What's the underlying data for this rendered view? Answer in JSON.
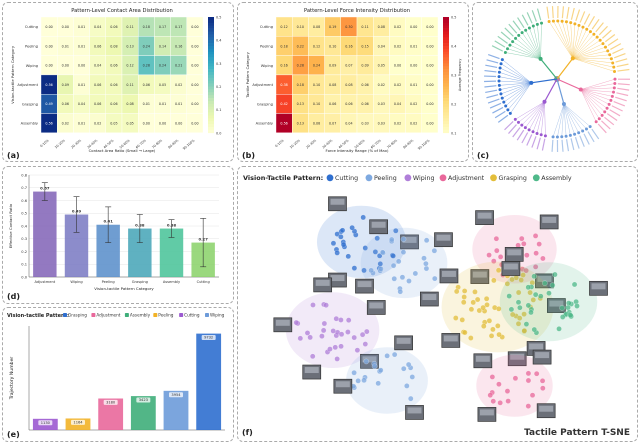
{
  "chart_data": [
    {
      "type": "heatmap",
      "id": "a",
      "panel_label": "(a)",
      "title": "Pattern-Level Contact Area Distribution",
      "xlabel": "Contact Area Ratio (Small → Large)",
      "ylabel": "Vision-tactile Pattern Category",
      "rows": [
        "Cutting",
        "Peeling",
        "Wiping",
        "Adjustment",
        "Grasping",
        "Assembly"
      ],
      "cols": [
        "0-10%",
        "10-20%",
        "20-30%",
        "30-40%",
        "40-50%",
        "50-60%",
        "60-70%",
        "70-80%",
        "80-90%",
        "90-100%"
      ],
      "values": [
        [
          0.0,
          0.0,
          0.01,
          0.04,
          0.06,
          0.11,
          0.18,
          0.17,
          0.17,
          0.0
        ],
        [
          0.0,
          0.01,
          0.01,
          0.06,
          0.08,
          0.13,
          0.24,
          0.14,
          0.16,
          0.0
        ],
        [
          0.0,
          0.0,
          0.0,
          0.04,
          0.06,
          0.12,
          0.28,
          0.24,
          0.21,
          0.0
        ],
        [
          0.56,
          0.09,
          0.01,
          0.06,
          0.06,
          0.11,
          0.06,
          0.05,
          0.02,
          0.0
        ],
        [
          0.49,
          0.06,
          0.04,
          0.06,
          0.06,
          0.08,
          0.01,
          0.01,
          0.01,
          0.0
        ],
        [
          0.56,
          0.02,
          0.01,
          0.02,
          0.05,
          0.05,
          0.0,
          0.0,
          0.0,
          0.0
        ]
      ],
      "colorbar_ticks": [
        "0.5",
        "0.4",
        "0.3",
        "0.2",
        "0.1",
        "0.0"
      ]
    },
    {
      "type": "heatmap",
      "id": "b",
      "panel_label": "(b)",
      "title": "Pattern-Level Force Intensity Distribution",
      "xlabel": "Force Intensity Range (% of Max)",
      "ylabel": "Tactile Pattern Category",
      "colorbar_label": "Average Frequency",
      "rows": [
        "Cutting",
        "Peeling",
        "Wiping",
        "Adjustment",
        "Grasping",
        "Assembly"
      ],
      "cols": [
        "0-10%",
        "10-20%",
        "20-30%",
        "30-40%",
        "40-50%",
        "50-60%",
        "60-70%",
        "70-80%",
        "80-90%",
        "90-100%"
      ],
      "values": [
        [
          0.12,
          0.1,
          0.08,
          0.19,
          0.3,
          0.11,
          0.08,
          0.02,
          0.0,
          0.0
        ],
        [
          0.18,
          0.22,
          0.12,
          0.1,
          0.16,
          0.15,
          0.04,
          0.02,
          0.01,
          0.0
        ],
        [
          0.16,
          0.28,
          0.24,
          0.09,
          0.07,
          0.09,
          0.05,
          0.0,
          0.0,
          0.0
        ],
        [
          0.38,
          0.18,
          0.1,
          0.08,
          0.08,
          0.06,
          0.02,
          0.02,
          0.01,
          0.0
        ],
        [
          0.42,
          0.13,
          0.1,
          0.06,
          0.06,
          0.06,
          0.03,
          0.04,
          0.02,
          0.0
        ],
        [
          0.56,
          0.13,
          0.08,
          0.07,
          0.04,
          0.03,
          0.03,
          0.02,
          0.02,
          0.0
        ]
      ],
      "colorbar_ticks": [
        "0.5",
        "0.4",
        "0.3",
        "0.2",
        "0.1"
      ]
    },
    {
      "type": "radial_tree",
      "id": "c",
      "panel_label": "(c)",
      "branches": [
        {
          "name": "Grasping",
          "color": "#f2b227",
          "leaves": 22
        },
        {
          "name": "Adjustment",
          "color": "#e9689b",
          "leaves": 12
        },
        {
          "name": "Peeling",
          "color": "#6d9bd9",
          "leaves": 10
        },
        {
          "name": "Cutting",
          "color": "#9b59d0",
          "leaves": 9
        },
        {
          "name": "Wiping",
          "color": "#2f6fcf",
          "leaves": 14
        },
        {
          "name": "Assembly",
          "color": "#3fae7a",
          "leaves": 12
        }
      ]
    },
    {
      "type": "bar",
      "id": "d",
      "panel_label": "(d)",
      "xlabel": "Vision-tactile Pattern Category",
      "ylabel": "Effective Contact Ratio",
      "categories": [
        "Adjustment",
        "Wiping",
        "Peeling",
        "Grasping",
        "Assembly",
        "Cutting"
      ],
      "values": [
        0.67,
        0.49,
        0.41,
        0.38,
        0.38,
        0.27
      ],
      "errors": [
        0.07,
        0.14,
        0.14,
        0.11,
        0.07,
        0.19
      ],
      "value_labels": [
        "0.67",
        "0.49",
        "0.41",
        "0.38",
        "0.38",
        "0.27"
      ],
      "colors": [
        "#8467b8",
        "#7c7cc4",
        "#5b8fcb",
        "#49a6b8",
        "#4bc49a",
        "#8cd36c"
      ],
      "ylim": [
        0,
        0.8
      ],
      "yticks": [
        0.0,
        0.1,
        0.2,
        0.3,
        0.4,
        0.5,
        0.6,
        0.7,
        0.8
      ]
    },
    {
      "type": "bar",
      "id": "e",
      "panel_label": "(e)",
      "legend_title": "Vision-tactile Pattern:",
      "ylabel": "Trajectory Number",
      "categories": [
        "Cutting",
        "Peeling",
        "Adjustment",
        "Assembly",
        "Wiping",
        "Grasping"
      ],
      "values": [
        1130,
        1164,
        3180,
        3423,
        3954,
        9732
      ],
      "value_labels": [
        "1130",
        "1164",
        "3180",
        "3423",
        "3954",
        "9732"
      ],
      "colors": [
        "#9b59d0",
        "#f2b227",
        "#e9689b",
        "#3fae7a",
        "#6d9bd9",
        "#2f6fcf"
      ],
      "legend": [
        {
          "name": "Grasping",
          "color": "#2f6fcf"
        },
        {
          "name": "Adjustment",
          "color": "#e9689b"
        },
        {
          "name": "Assembly",
          "color": "#3fae7a"
        },
        {
          "name": "Peeling",
          "color": "#f2b227"
        },
        {
          "name": "Cutting",
          "color": "#9b59d0"
        },
        {
          "name": "Wiping",
          "color": "#6d9bd9"
        }
      ],
      "ylim": [
        0,
        10500
      ]
    },
    {
      "type": "scatter",
      "id": "f",
      "panel_label": "(f)",
      "title": "Tactile Pattern T-SNE",
      "legend_title": "Vision-Tactile Pattern",
      "legend": [
        {
          "name": "Cutting",
          "color": "#2f6fcf"
        },
        {
          "name": "Peeling",
          "color": "#7ea9e0"
        },
        {
          "name": "Wiping",
          "color": "#b07fd9"
        },
        {
          "name": "Adjustment",
          "color": "#e9689b"
        },
        {
          "name": "Grasping",
          "color": "#e3be3a"
        },
        {
          "name": "Assembly",
          "color": "#4fb98a"
        }
      ],
      "clusters": [
        {
          "name": "Cutting",
          "color": "#2f6fcf",
          "cx": -0.45,
          "cy": 0.62,
          "n": 26
        },
        {
          "name": "Peeling",
          "color": "#7ea9e0",
          "cx": -0.2,
          "cy": 0.42,
          "n": 24
        },
        {
          "name": "Wiping",
          "color": "#b07fd9",
          "cx": -0.62,
          "cy": -0.22,
          "n": 30
        },
        {
          "name": "Peeling",
          "color": "#7ea9e0",
          "cx": -0.3,
          "cy": -0.7,
          "n": 20
        },
        {
          "name": "Adjustment",
          "color": "#e9689b",
          "cx": 0.45,
          "cy": 0.55,
          "n": 22
        },
        {
          "name": "Grasping",
          "color": "#e3be3a",
          "cx": 0.35,
          "cy": 0.0,
          "n": 50
        },
        {
          "name": "Assembly",
          "color": "#4fb98a",
          "cx": 0.65,
          "cy": 0.05,
          "n": 34
        },
        {
          "name": "Adjustment",
          "color": "#e9689b",
          "cx": 0.45,
          "cy": -0.75,
          "n": 16
        }
      ]
    }
  ]
}
